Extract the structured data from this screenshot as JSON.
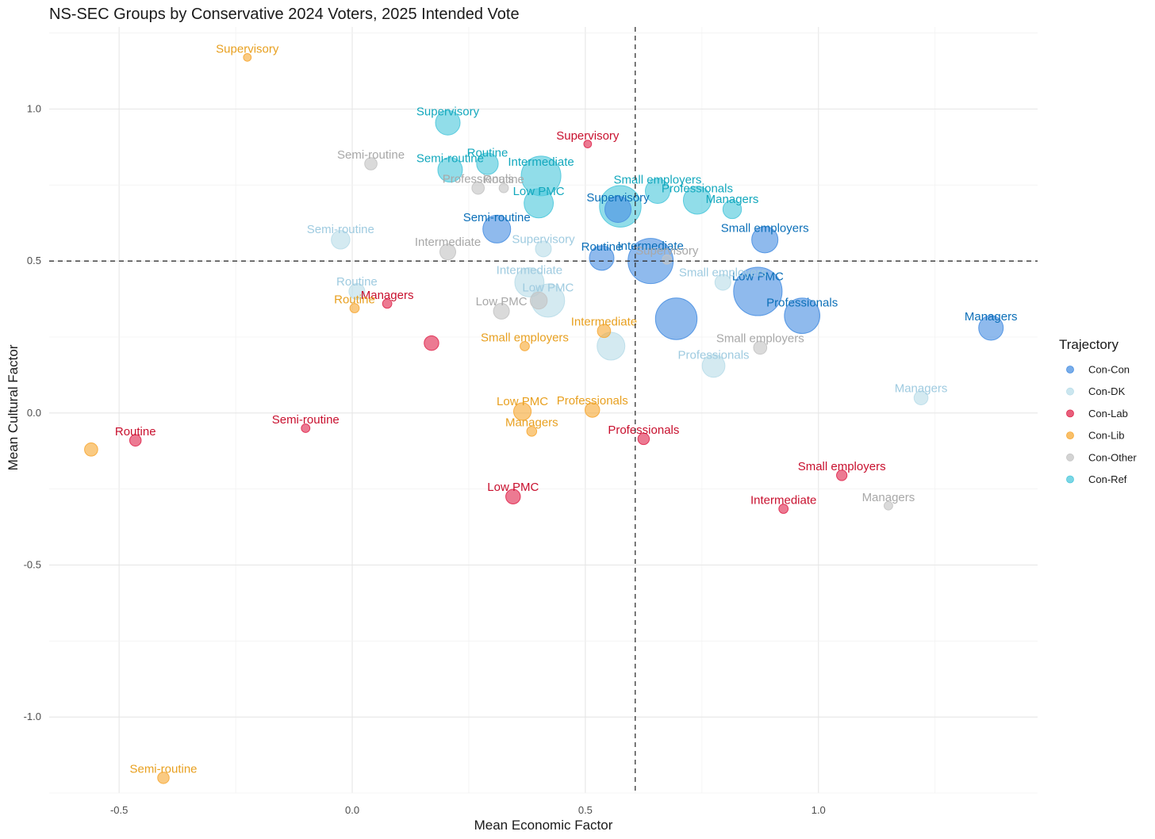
{
  "chart_data": {
    "type": "scatter",
    "title": "NS-SEC Groups by Conservative 2024 Voters, 2025 Intended Vote",
    "xlabel": "Mean Economic Factor",
    "ylabel": "Mean Cultural Factor",
    "xlim": [
      -0.65,
      1.47
    ],
    "ylim": [
      -1.25,
      1.27
    ],
    "x_ticks": [
      -0.5,
      0.0,
      0.5,
      1.0
    ],
    "x_tick_labels": [
      "-0.5",
      "0.0",
      "0.5",
      "1.0"
    ],
    "y_ticks": [
      -1.0,
      -0.5,
      0.0,
      0.5,
      1.0
    ],
    "y_tick_labels": [
      "-1.0",
      "-0.5",
      "0.0",
      "0.5",
      "1.0"
    ],
    "reference_lines": {
      "x": 0.607,
      "y": 0.5
    },
    "grid": true,
    "legend": {
      "title": "Trajectory",
      "placement": "right",
      "entries": [
        "Con-Con",
        "Con-DK",
        "Con-Lab",
        "Con-Lib",
        "Con-Other",
        "Con-Ref"
      ]
    },
    "colors": {
      "Con-Con": "#4a90e2",
      "Con-DK": "#b9dde9",
      "Con-Lab": "#e0294f",
      "Con-Lib": "#f7a935",
      "Con-Other": "#c4c4c4",
      "Con-Ref": "#4ec8dc"
    },
    "label_colors": {
      "Con-Con": "#0b6fb8",
      "Con-DK": "#9fcbe0",
      "Con-Lab": "#c8102e",
      "Con-Lib": "#e8a020",
      "Con-Other": "#a8a8a8",
      "Con-Ref": "#13a8bd"
    },
    "series": [
      {
        "name": "Con-Con",
        "points": [
          {
            "label": "Managers",
            "x": 1.37,
            "y": 0.28,
            "size": 3
          },
          {
            "label": "Professionals",
            "x": 0.965,
            "y": 0.32,
            "size": 7
          },
          {
            "label": "Low PMC",
            "x": 0.87,
            "y": 0.4,
            "size": 14
          },
          {
            "label": "Small employers",
            "x": 0.885,
            "y": 0.57,
            "size": 3.5
          },
          {
            "label": "Intermediate",
            "x": 0.64,
            "y": 0.5,
            "size": 12
          },
          {
            "label": "Routine",
            "x": 0.535,
            "y": 0.51,
            "size": 3
          },
          {
            "label": "Supervisory",
            "x": 0.57,
            "y": 0.67,
            "size": 3.5
          },
          {
            "label": "Semi-routine",
            "x": 0.31,
            "y": 0.605,
            "size": 4
          },
          {
            "label": "",
            "x": 0.695,
            "y": 0.31,
            "size": 10
          }
        ]
      },
      {
        "name": "Con-DK",
        "points": [
          {
            "label": "Managers",
            "x": 1.22,
            "y": 0.05,
            "size": 0.7
          },
          {
            "label": "Professionals",
            "x": 0.775,
            "y": 0.155,
            "size": 2.5
          },
          {
            "label": "Small employers",
            "x": 0.795,
            "y": 0.43,
            "size": 1
          },
          {
            "label": "Low PMC",
            "x": 0.42,
            "y": 0.37,
            "size": 6
          },
          {
            "label": "Intermediate",
            "x": 0.38,
            "y": 0.43,
            "size": 4.5
          },
          {
            "label": "Supervisory",
            "x": 0.41,
            "y": 0.54,
            "size": 1
          },
          {
            "label": "Semi-routine",
            "x": -0.025,
            "y": 0.57,
            "size": 1.5
          },
          {
            "label": "Routine",
            "x": 0.01,
            "y": 0.4,
            "size": 1
          },
          {
            "label": "",
            "x": 0.555,
            "y": 0.22,
            "size": 4
          }
        ]
      },
      {
        "name": "Con-Lab",
        "points": [
          {
            "label": "Supervisory",
            "x": 0.505,
            "y": 0.885,
            "size": 0.1
          },
          {
            "label": "Managers",
            "x": 0.075,
            "y": 0.36,
            "size": 0.2
          },
          {
            "label": "Professionals",
            "x": 0.625,
            "y": -0.085,
            "size": 0.4
          },
          {
            "label": "Small employers",
            "x": 1.05,
            "y": -0.205,
            "size": 0.3
          },
          {
            "label": "Intermediate",
            "x": 0.925,
            "y": -0.315,
            "size": 0.2
          },
          {
            "label": "Low PMC",
            "x": 0.345,
            "y": -0.275,
            "size": 0.8
          },
          {
            "label": "Semi-routine",
            "x": -0.1,
            "y": -0.05,
            "size": 0.15
          },
          {
            "label": "Routine",
            "x": -0.465,
            "y": -0.09,
            "size": 0.4
          },
          {
            "label": "",
            "x": 0.17,
            "y": 0.23,
            "size": 0.8
          }
        ]
      },
      {
        "name": "Con-Lib",
        "points": [
          {
            "label": "Supervisory",
            "x": -0.225,
            "y": 1.17,
            "size": 0.1
          },
          {
            "label": "Routine",
            "x": 0.005,
            "y": 0.345,
            "size": 0.2
          },
          {
            "label": "Intermediate",
            "x": 0.54,
            "y": 0.27,
            "size": 0.6
          },
          {
            "label": "Small employers",
            "x": 0.37,
            "y": 0.22,
            "size": 0.2
          },
          {
            "label": "Professionals",
            "x": 0.515,
            "y": 0.01,
            "size": 0.8
          },
          {
            "label": "Low PMC",
            "x": 0.365,
            "y": 0.005,
            "size": 1.3
          },
          {
            "label": "Managers",
            "x": 0.385,
            "y": -0.06,
            "size": 0.25
          },
          {
            "label": "Semi-routine",
            "x": -0.405,
            "y": -1.2,
            "size": 0.4
          },
          {
            "label": "",
            "x": -0.56,
            "y": -0.12,
            "size": 0.6
          }
        ]
      },
      {
        "name": "Con-Other",
        "points": [
          {
            "label": "Semi-routine",
            "x": 0.04,
            "y": 0.82,
            "size": 0.5
          },
          {
            "label": "Professionals",
            "x": 0.27,
            "y": 0.74,
            "size": 0.5
          },
          {
            "label": "Routine",
            "x": 0.325,
            "y": 0.74,
            "size": 0.2
          },
          {
            "label": "Intermediate",
            "x": 0.205,
            "y": 0.53,
            "size": 1
          },
          {
            "label": "Low PMC",
            "x": 0.32,
            "y": 0.335,
            "size": 1
          },
          {
            "label": "Supervisory",
            "x": 0.675,
            "y": 0.505,
            "size": 0.2
          },
          {
            "label": "Small employers",
            "x": 0.875,
            "y": 0.215,
            "size": 0.6
          },
          {
            "label": "Managers",
            "x": 1.15,
            "y": -0.305,
            "size": 0.15
          },
          {
            "label": "",
            "x": 0.4,
            "y": 0.37,
            "size": 1.2
          }
        ]
      },
      {
        "name": "Con-Ref",
        "points": [
          {
            "label": "Supervisory",
            "x": 0.205,
            "y": 0.955,
            "size": 3
          },
          {
            "label": "Routine",
            "x": 0.29,
            "y": 0.82,
            "size": 2.2
          },
          {
            "label": "Semi-routine",
            "x": 0.21,
            "y": 0.8,
            "size": 3
          },
          {
            "label": "Intermediate",
            "x": 0.405,
            "y": 0.78,
            "size": 9
          },
          {
            "label": "Low PMC",
            "x": 0.4,
            "y": 0.69,
            "size": 4.5
          },
          {
            "label": "Small employers",
            "x": 0.655,
            "y": 0.73,
            "size": 3
          },
          {
            "label": "Professionals",
            "x": 0.74,
            "y": 0.7,
            "size": 4
          },
          {
            "label": "Managers",
            "x": 0.815,
            "y": 0.67,
            "size": 1.5
          },
          {
            "label": "",
            "x": 0.575,
            "y": 0.68,
            "size": 10
          }
        ]
      }
    ]
  }
}
